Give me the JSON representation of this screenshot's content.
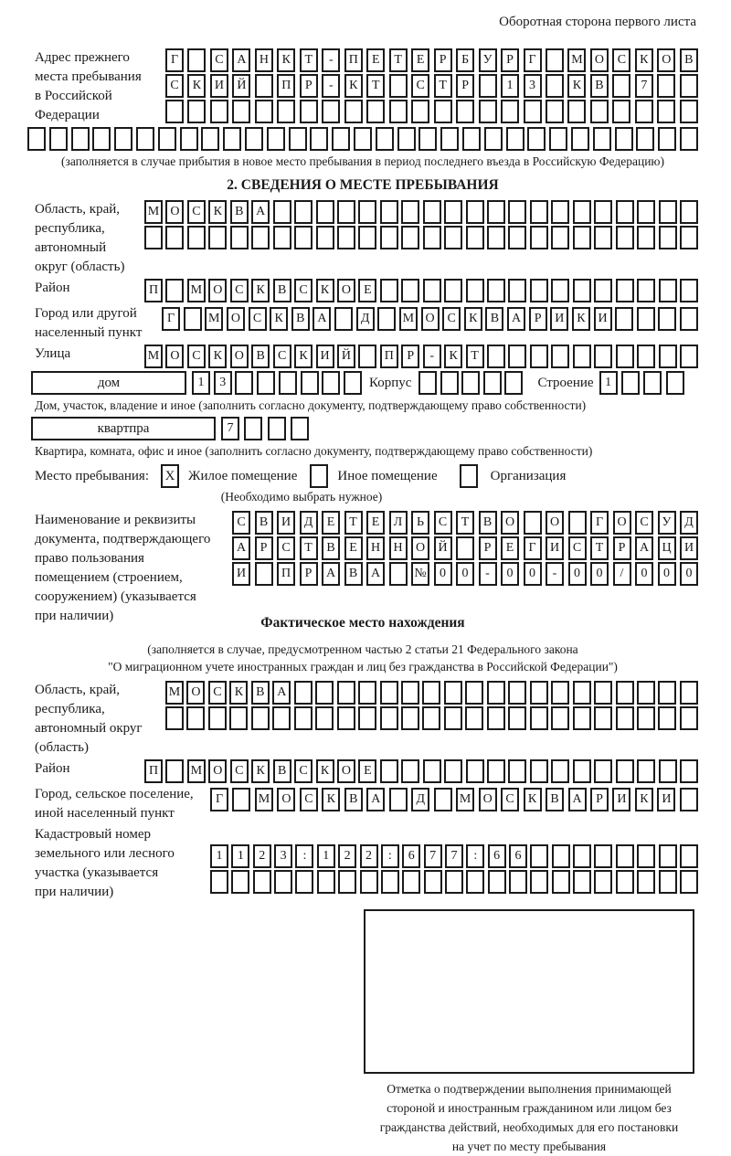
{
  "page": {
    "header_note": "Оборотная сторона первого листа",
    "ink_color": "#1a1a1a"
  },
  "prev_address": {
    "label": "Адрес прежнего\nместа пребывания\nв Российской\nФедерации",
    "rows": [
      {
        "text": "Г САНКТ-ПЕТЕРБУРГ МОСКОВ",
        "len": 24
      },
      {
        "text": "СКИЙ ПР-КТ СТР 13 КВ 7",
        "len": 24
      },
      {
        "text": "",
        "len": 24
      },
      {
        "text": "",
        "len": 31
      }
    ],
    "note": "(заполняется в случае прибытия в новое место пребывания в период последнего въезда в Российскую Федерацию)"
  },
  "section2": {
    "title": "2. СВЕДЕНИЯ О МЕСТЕ ПРЕБЫВАНИЯ",
    "oblast": {
      "label": "Область, край,\nреспублика,\nавтономный\nокруг (область)",
      "rows": [
        {
          "text": "МОСКВА",
          "len": 26
        },
        {
          "text": "",
          "len": 26
        }
      ]
    },
    "raion": {
      "label": "Район",
      "row": {
        "text": "П МОСКВСКОЕ",
        "len": 26
      }
    },
    "gorod": {
      "label": "Город или другой\nнаселенный пункт",
      "row": {
        "text": "Г МОСКВА Д МОСКВАРИКИ",
        "len": 25
      }
    },
    "ulitsa": {
      "label": "Улица",
      "row": {
        "text": "МОСКОВСКИЙ ПР-КТ",
        "len": 26
      }
    },
    "dom": {
      "box_label": "дом",
      "cells": {
        "text": "13",
        "len": 8
      },
      "korpus_label": "Корпус",
      "korpus_cells": {
        "text": "",
        "len": 5
      },
      "stroenie_label": "Строение",
      "stroenie_cells": {
        "text": "1",
        "len": 4
      },
      "note": "Дом, участок, владение и иное (заполнить согласно документу, подтверждающему право собственности)"
    },
    "kvartira": {
      "box_label": "квартпра",
      "cells": {
        "text": "7",
        "len": 4
      },
      "note": "Квартира, комната, офис и иное (заполнить согласно документу, подтверждающему право собственности)"
    },
    "mesto": {
      "label": "Место пребывания:",
      "options": [
        {
          "mark": "X",
          "label": "Жилое помещение"
        },
        {
          "mark": "",
          "label": "Иное помещение"
        },
        {
          "mark": "",
          "label": "Организация"
        }
      ],
      "note": "(Необходимо выбрать нужное)"
    },
    "doc": {
      "label": "Наименование и реквизиты\nдокумента, подтверждающего\nправо пользования\nпомещением (строением,\nсооружением) (указывается\nпри наличии)",
      "rows": [
        {
          "text": "СВИДЕТЕЛЬСТВО О ГОСУД",
          "len": 21
        },
        {
          "text": "АРСТВЕННОЙ РЕГИСТРАЦИ",
          "len": 21
        },
        {
          "text": "И ПРАВА №00-00-00/000",
          "len": 21
        }
      ]
    }
  },
  "fact": {
    "title": "Фактическое место нахождения",
    "note": "(заполняется в случае, предусмотренном частью 2 статьи 21 Федерального закона\n\"О миграционном учете иностранных граждан и лиц без гражданства в Российской Федерации\")",
    "oblast": {
      "label": "Область, край,\nреспублика,\nавтономный округ\n(область)",
      "rows": [
        {
          "text": "МОСКВА",
          "len": 25
        },
        {
          "text": "",
          "len": 25
        }
      ]
    },
    "raion": {
      "label": "Район",
      "row": {
        "text": "П МОСКВСКОЕ",
        "len": 26
      }
    },
    "gorod": {
      "label": "Город, сельское поселение,\nиной населенный пункт",
      "row": {
        "text": "Г МОСКВА Д МОСКВАРИКИ",
        "len": 22
      }
    },
    "kadastr": {
      "label": "Кадастровый номер\nземельного или лесного\nучастка (указывается\nпри наличии)",
      "rows": [
        {
          "text": "1123:122:677:66",
          "len": 23
        },
        {
          "text": "",
          "len": 23
        }
      ]
    },
    "stamp_note": "Отметка о подтверждении выполнения принимающей\nстороной и иностранным гражданином или лицом без\nгражданства действий, необходимых для его постановки\nна учет по месту пребывания"
  }
}
